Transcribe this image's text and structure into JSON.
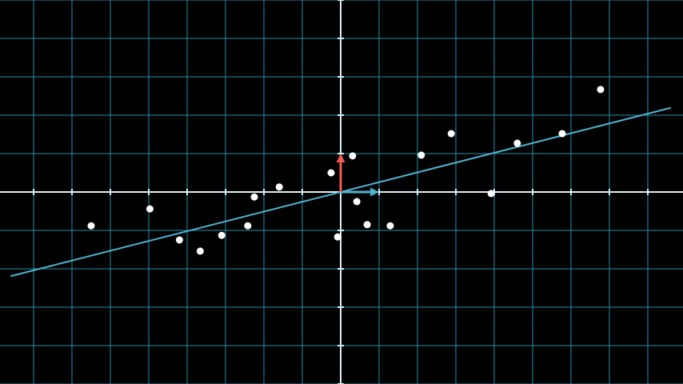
{
  "chart_data": {
    "type": "scatter",
    "title": "",
    "xlabel": "",
    "ylabel": "",
    "xlim": [
      -8.875,
      8.917
    ],
    "ylim": [
      -5.0,
      5.0
    ],
    "grid": true,
    "grid_step": 1,
    "colors": {
      "background": "#000000",
      "grid": "#2a8fa8",
      "axis": "#d8f0f6",
      "points": "#ffffff",
      "fit_line": "#4fb3d0",
      "basis_x": "#4fb3d0",
      "basis_y": "#ef5a50"
    },
    "points": [
      {
        "x": -6.5,
        "y": -0.88
      },
      {
        "x": -4.97,
        "y": -0.44
      },
      {
        "x": -4.2,
        "y": -1.25
      },
      {
        "x": -3.66,
        "y": -1.54
      },
      {
        "x": -3.1,
        "y": -1.13
      },
      {
        "x": -2.42,
        "y": -0.88
      },
      {
        "x": -2.25,
        "y": -0.13
      },
      {
        "x": -1.6,
        "y": 0.13
      },
      {
        "x": -0.25,
        "y": 0.5
      },
      {
        "x": 0.31,
        "y": 0.94
      },
      {
        "x": -0.08,
        "y": -1.17
      },
      {
        "x": 0.42,
        "y": -0.25
      },
      {
        "x": 0.69,
        "y": -0.85
      },
      {
        "x": 1.29,
        "y": -0.88
      },
      {
        "x": 2.1,
        "y": 0.96
      },
      {
        "x": 2.88,
        "y": 1.52
      },
      {
        "x": 3.92,
        "y": -0.04
      },
      {
        "x": 4.6,
        "y": 1.27
      },
      {
        "x": 5.77,
        "y": 1.52
      },
      {
        "x": 6.77,
        "y": 2.67
      }
    ],
    "fit_line": {
      "slope": 0.255,
      "intercept": 0.0,
      "x_range": [
        -8.6,
        8.6
      ]
    },
    "basis_vectors": [
      {
        "name": "i-hat",
        "dx": 1,
        "dy": 0
      },
      {
        "name": "j-hat",
        "dx": 0,
        "dy": 1
      }
    ]
  }
}
